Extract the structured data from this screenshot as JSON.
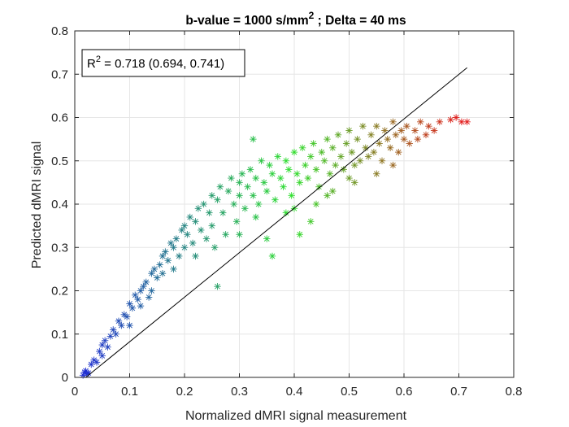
{
  "chart_data": {
    "type": "scatter",
    "title": "b-value = 1000 s/mm",
    "title_sup": "2",
    "title_rest": " ; Delta = 40 ms",
    "xlabel": "Normalized dMRI signal measurement",
    "ylabel": "Predicted dMRI signal",
    "xlim": [
      0,
      0.8
    ],
    "ylim": [
      0,
      0.8
    ],
    "xticks": [
      "0",
      "0.1",
      "0.2",
      "0.3",
      "0.4",
      "0.5",
      "0.6",
      "0.7",
      "0.8"
    ],
    "yticks": [
      "0",
      "0.1",
      "0.2",
      "0.3",
      "0.4",
      "0.5",
      "0.6",
      "0.7",
      "0.8"
    ],
    "grid": true,
    "marker": "asterisk",
    "annotation": {
      "label": "R",
      "sup": "2",
      "text": " = 0.718 (0.694, 0.741)"
    },
    "fit_line": {
      "x": [
        0.02,
        0.715
      ],
      "y": [
        0.0,
        0.715
      ]
    },
    "color_gradient": [
      "#1f2fd0",
      "#2ee02e",
      "#e21c1c"
    ],
    "points": [
      [
        0.015,
        0.005
      ],
      [
        0.018,
        0.012
      ],
      [
        0.022,
        0.008
      ],
      [
        0.02,
        0.015
      ],
      [
        0.025,
        0.01
      ],
      [
        0.03,
        0.03
      ],
      [
        0.035,
        0.04
      ],
      [
        0.04,
        0.035
      ],
      [
        0.045,
        0.06
      ],
      [
        0.05,
        0.05
      ],
      [
        0.05,
        0.075
      ],
      [
        0.055,
        0.085
      ],
      [
        0.06,
        0.07
      ],
      [
        0.065,
        0.095
      ],
      [
        0.07,
        0.11
      ],
      [
        0.075,
        0.1
      ],
      [
        0.08,
        0.13
      ],
      [
        0.085,
        0.12
      ],
      [
        0.09,
        0.145
      ],
      [
        0.095,
        0.14
      ],
      [
        0.1,
        0.12
      ],
      [
        0.1,
        0.17
      ],
      [
        0.105,
        0.16
      ],
      [
        0.11,
        0.19
      ],
      [
        0.115,
        0.18
      ],
      [
        0.12,
        0.2
      ],
      [
        0.12,
        0.165
      ],
      [
        0.125,
        0.21
      ],
      [
        0.13,
        0.22
      ],
      [
        0.135,
        0.185
      ],
      [
        0.14,
        0.24
      ],
      [
        0.14,
        0.2
      ],
      [
        0.145,
        0.25
      ],
      [
        0.15,
        0.23
      ],
      [
        0.155,
        0.26
      ],
      [
        0.16,
        0.28
      ],
      [
        0.16,
        0.24
      ],
      [
        0.165,
        0.29
      ],
      [
        0.17,
        0.27
      ],
      [
        0.175,
        0.31
      ],
      [
        0.18,
        0.3
      ],
      [
        0.18,
        0.25
      ],
      [
        0.185,
        0.32
      ],
      [
        0.19,
        0.28
      ],
      [
        0.195,
        0.34
      ],
      [
        0.2,
        0.3
      ],
      [
        0.2,
        0.35
      ],
      [
        0.205,
        0.33
      ],
      [
        0.21,
        0.37
      ],
      [
        0.215,
        0.31
      ],
      [
        0.22,
        0.36
      ],
      [
        0.22,
        0.28
      ],
      [
        0.225,
        0.39
      ],
      [
        0.23,
        0.34
      ],
      [
        0.235,
        0.4
      ],
      [
        0.24,
        0.32
      ],
      [
        0.245,
        0.38
      ],
      [
        0.25,
        0.42
      ],
      [
        0.25,
        0.35
      ],
      [
        0.255,
        0.3
      ],
      [
        0.26,
        0.41
      ],
      [
        0.265,
        0.44
      ],
      [
        0.27,
        0.38
      ],
      [
        0.275,
        0.33
      ],
      [
        0.28,
        0.43
      ],
      [
        0.285,
        0.46
      ],
      [
        0.29,
        0.4
      ],
      [
        0.295,
        0.36
      ],
      [
        0.3,
        0.45
      ],
      [
        0.3,
        0.42
      ],
      [
        0.305,
        0.47
      ],
      [
        0.31,
        0.39
      ],
      [
        0.315,
        0.44
      ],
      [
        0.32,
        0.48
      ],
      [
        0.325,
        0.42
      ],
      [
        0.33,
        0.46
      ],
      [
        0.335,
        0.4
      ],
      [
        0.34,
        0.5
      ],
      [
        0.345,
        0.45
      ],
      [
        0.35,
        0.43
      ],
      [
        0.355,
        0.49
      ],
      [
        0.36,
        0.47
      ],
      [
        0.365,
        0.41
      ],
      [
        0.37,
        0.51
      ],
      [
        0.375,
        0.46
      ],
      [
        0.38,
        0.44
      ],
      [
        0.385,
        0.5
      ],
      [
        0.39,
        0.48
      ],
      [
        0.395,
        0.42
      ],
      [
        0.4,
        0.52
      ],
      [
        0.405,
        0.47
      ],
      [
        0.41,
        0.45
      ],
      [
        0.415,
        0.53
      ],
      [
        0.42,
        0.49
      ],
      [
        0.425,
        0.46
      ],
      [
        0.43,
        0.51
      ],
      [
        0.435,
        0.54
      ],
      [
        0.44,
        0.48
      ],
      [
        0.445,
        0.44
      ],
      [
        0.45,
        0.52
      ],
      [
        0.455,
        0.5
      ],
      [
        0.46,
        0.55
      ],
      [
        0.465,
        0.47
      ],
      [
        0.47,
        0.53
      ],
      [
        0.475,
        0.49
      ],
      [
        0.48,
        0.56
      ],
      [
        0.485,
        0.51
      ],
      [
        0.49,
        0.48
      ],
      [
        0.495,
        0.54
      ],
      [
        0.5,
        0.57
      ],
      [
        0.505,
        0.52
      ],
      [
        0.51,
        0.49
      ],
      [
        0.515,
        0.55
      ],
      [
        0.52,
        0.5
      ],
      [
        0.525,
        0.58
      ],
      [
        0.53,
        0.53
      ],
      [
        0.535,
        0.51
      ],
      [
        0.54,
        0.56
      ],
      [
        0.545,
        0.52
      ],
      [
        0.55,
        0.58
      ],
      [
        0.555,
        0.54
      ],
      [
        0.56,
        0.5
      ],
      [
        0.565,
        0.57
      ],
      [
        0.57,
        0.55
      ],
      [
        0.575,
        0.53
      ],
      [
        0.58,
        0.59
      ],
      [
        0.585,
        0.56
      ],
      [
        0.59,
        0.52
      ],
      [
        0.595,
        0.57
      ],
      [
        0.6,
        0.55
      ],
      [
        0.605,
        0.58
      ],
      [
        0.61,
        0.54
      ],
      [
        0.62,
        0.57
      ],
      [
        0.625,
        0.55
      ],
      [
        0.63,
        0.59
      ],
      [
        0.64,
        0.56
      ],
      [
        0.645,
        0.58
      ],
      [
        0.655,
        0.57
      ],
      [
        0.665,
        0.59
      ],
      [
        0.685,
        0.595
      ],
      [
        0.695,
        0.6
      ],
      [
        0.705,
        0.59
      ],
      [
        0.715,
        0.59
      ],
      [
        0.36,
        0.28
      ],
      [
        0.325,
        0.55
      ],
      [
        0.41,
        0.33
      ],
      [
        0.26,
        0.21
      ],
      [
        0.35,
        0.32
      ],
      [
        0.43,
        0.36
      ],
      [
        0.385,
        0.38
      ],
      [
        0.33,
        0.37
      ],
      [
        0.3,
        0.33
      ],
      [
        0.46,
        0.42
      ],
      [
        0.51,
        0.45
      ],
      [
        0.55,
        0.47
      ],
      [
        0.47,
        0.43
      ],
      [
        0.5,
        0.46
      ],
      [
        0.58,
        0.49
      ],
      [
        0.44,
        0.4
      ],
      [
        0.4,
        0.39
      ]
    ]
  }
}
